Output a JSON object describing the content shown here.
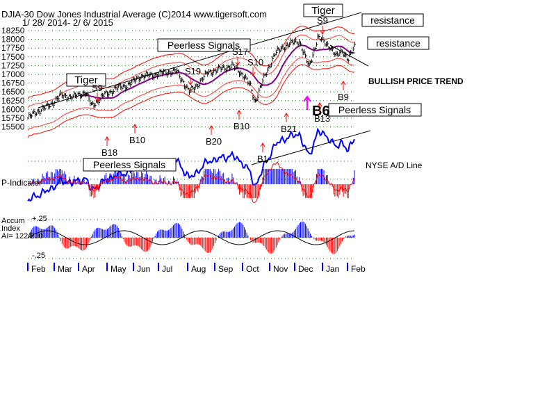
{
  "header": {
    "line1": "DJIA-30  Dow Jones Industrial Average   (C)2014 www.tigersoft.com",
    "line2": "1/ 28/ 2014- 2/ 6/ 2015"
  },
  "colors": {
    "price_bars": "#000000",
    "bands": "#ff0000",
    "moving_average": "#800080",
    "ad_line": "#0000ff",
    "positive_bars": "#0000ff",
    "negative_bars": "#ff0000",
    "gridlines": "#008000",
    "signal_arrows": "#ff0000",
    "magenta_arrow": "#ff00ff"
  },
  "chart_data": {
    "type": "line",
    "title": "DJIA-30  Dow Jones Industrial Average",
    "y_ticks": [
      "18250",
      "18000",
      "17750",
      "17500",
      "17250",
      "17000",
      "16750",
      "16500",
      "16250",
      "16000",
      "15750",
      "15500"
    ],
    "ylim": [
      15500,
      18250
    ],
    "x_months": [
      "Feb",
      "Mar",
      "Apr",
      "May",
      "Jun",
      "Jul",
      "Aug",
      "Sep",
      "Oct",
      "Nov",
      "Dec",
      "Jan",
      "Feb"
    ],
    "grid": true,
    "series": [
      {
        "name": "DJIA-30",
        "x": [
          "2014-01-28",
          "2014-02-07",
          "2014-02-21",
          "2014-03-07",
          "2014-03-21",
          "2014-04-04",
          "2014-04-11",
          "2014-04-25",
          "2014-05-09",
          "2014-05-23",
          "2014-06-06",
          "2014-06-20",
          "2014-07-03",
          "2014-07-17",
          "2014-08-01",
          "2014-08-08",
          "2014-08-22",
          "2014-09-05",
          "2014-09-19",
          "2014-10-03",
          "2014-10-10",
          "2014-10-15",
          "2014-10-24",
          "2014-11-07",
          "2014-11-21",
          "2014-12-05",
          "2014-12-16",
          "2014-12-26",
          "2015-01-09",
          "2015-01-16",
          "2015-01-23",
          "2015-01-30",
          "2015-02-06"
        ],
        "values": [
          15750,
          15930,
          16100,
          16400,
          16350,
          16500,
          16100,
          16400,
          16600,
          16700,
          16950,
          16980,
          17050,
          17100,
          16500,
          16650,
          17050,
          17150,
          17250,
          16950,
          16650,
          16200,
          16800,
          17600,
          17850,
          17950,
          17200,
          18050,
          17800,
          17500,
          17700,
          17400,
          17800
        ]
      }
    ],
    "indicators": {
      "ad_line_label": "NYSE A/D Line",
      "p_indicator_label": "P-Indicator",
      "accum_label_line1": "Accum",
      "accum_label_line2": "Index",
      "accum_label_line3": "AI= 122/200",
      "accum_top": "+.25",
      "accum_bottom": "-.25"
    },
    "signals": [
      "S9",
      "S19",
      "S17",
      "S10",
      "S9",
      "B18",
      "B10",
      "B20",
      "B10",
      "B1",
      "B21",
      "B13",
      "B9"
    ],
    "annotations": {
      "tiger1": "Tiger",
      "tiger2": "Tiger",
      "resistance1": "resistance",
      "resistance2": "resistance",
      "peerless1": "Peerless Signals",
      "peerless2": "Peerless Signals",
      "peerless3": "Peerless Signals",
      "trend": "BULLISH PRICE TREND",
      "b6": "B6"
    }
  }
}
